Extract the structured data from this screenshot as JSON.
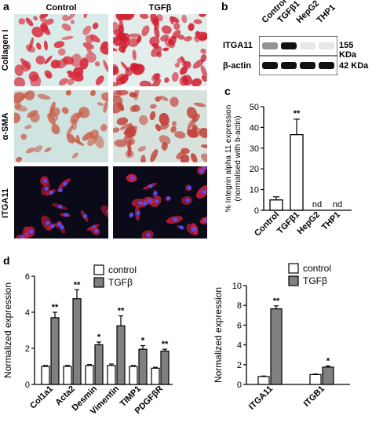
{
  "panel_a": {
    "letter": "a",
    "columns": [
      "Control",
      "TGFβ"
    ],
    "rows": [
      "Collagen I",
      "α-SMA",
      "ITGA11"
    ]
  },
  "panel_b": {
    "letter": "b",
    "lanes": [
      "Control",
      "TGFβ1",
      "HepG2",
      "THP1"
    ],
    "rows": [
      {
        "label": "ITGA11",
        "size": "155 KDa",
        "intensity": [
          0.45,
          1.0,
          0.1,
          0.1
        ]
      },
      {
        "label": "β-actin",
        "size": "42 KDa",
        "intensity": [
          1.0,
          1.0,
          1.0,
          1.0
        ]
      }
    ]
  },
  "chart_data": [
    {
      "panel": "c",
      "type": "bar",
      "ylabel": "% Integrin alpha 11 expression (normalised with b-actin)",
      "ylabel_lines": [
        "% Integrin alpha 11 expression",
        "(normalised with b-actin)"
      ],
      "categories": [
        "Control",
        "TGFβ1",
        "HepG2",
        "THP1"
      ],
      "values": [
        5,
        36.5,
        0,
        0
      ],
      "errors": [
        1.5,
        7.5,
        0,
        0
      ],
      "annotations": [
        "",
        "**",
        "nd",
        "nd"
      ],
      "ylim": [
        0,
        50
      ],
      "yticks": [
        0,
        10,
        20,
        30,
        40,
        50
      ]
    },
    {
      "panel": "d",
      "type": "bar",
      "ylabel": "Normalized expression",
      "categories": [
        "Col1a1",
        "Acta2",
        "Desmin",
        "Vimentin",
        "TIMP1",
        "PDGFβR"
      ],
      "series": [
        {
          "name": "control",
          "color": "#ffffff",
          "values": [
            1.0,
            1.0,
            1.05,
            1.05,
            1.0,
            0.9
          ],
          "errors": [
            0.05,
            0.05,
            0.05,
            0.08,
            0.05,
            0.05
          ],
          "annotations": [
            "",
            "",
            "",
            "",
            "",
            ""
          ]
        },
        {
          "name": "TGFβ",
          "color": "#808080",
          "values": [
            3.7,
            4.75,
            2.2,
            3.25,
            1.95,
            1.85
          ],
          "errors": [
            0.3,
            0.5,
            0.15,
            0.55,
            0.2,
            0.1
          ],
          "annotations": [
            "**",
            "**",
            "*",
            "**",
            "*",
            "**"
          ]
        }
      ],
      "ylim": [
        0,
        6
      ],
      "yticks": [
        0,
        2,
        4,
        6
      ]
    },
    {
      "panel": "d2",
      "type": "bar",
      "ylabel": "Normalized expression",
      "categories": [
        "ITGA11",
        "ITGB1"
      ],
      "series": [
        {
          "name": "control",
          "color": "#ffffff",
          "values": [
            0.8,
            1.0
          ],
          "errors": [
            0.05,
            0.05
          ],
          "annotations": [
            "",
            ""
          ]
        },
        {
          "name": "TGFβ",
          "color": "#808080",
          "values": [
            7.65,
            1.75
          ],
          "errors": [
            0.3,
            0.12
          ],
          "annotations": [
            "**",
            "*"
          ]
        }
      ],
      "ylim": [
        0,
        10
      ],
      "yticks": [
        0,
        2,
        4,
        6,
        8,
        10
      ]
    }
  ],
  "panel_d": {
    "letter": "d"
  },
  "panel_c": {
    "letter": "c"
  }
}
